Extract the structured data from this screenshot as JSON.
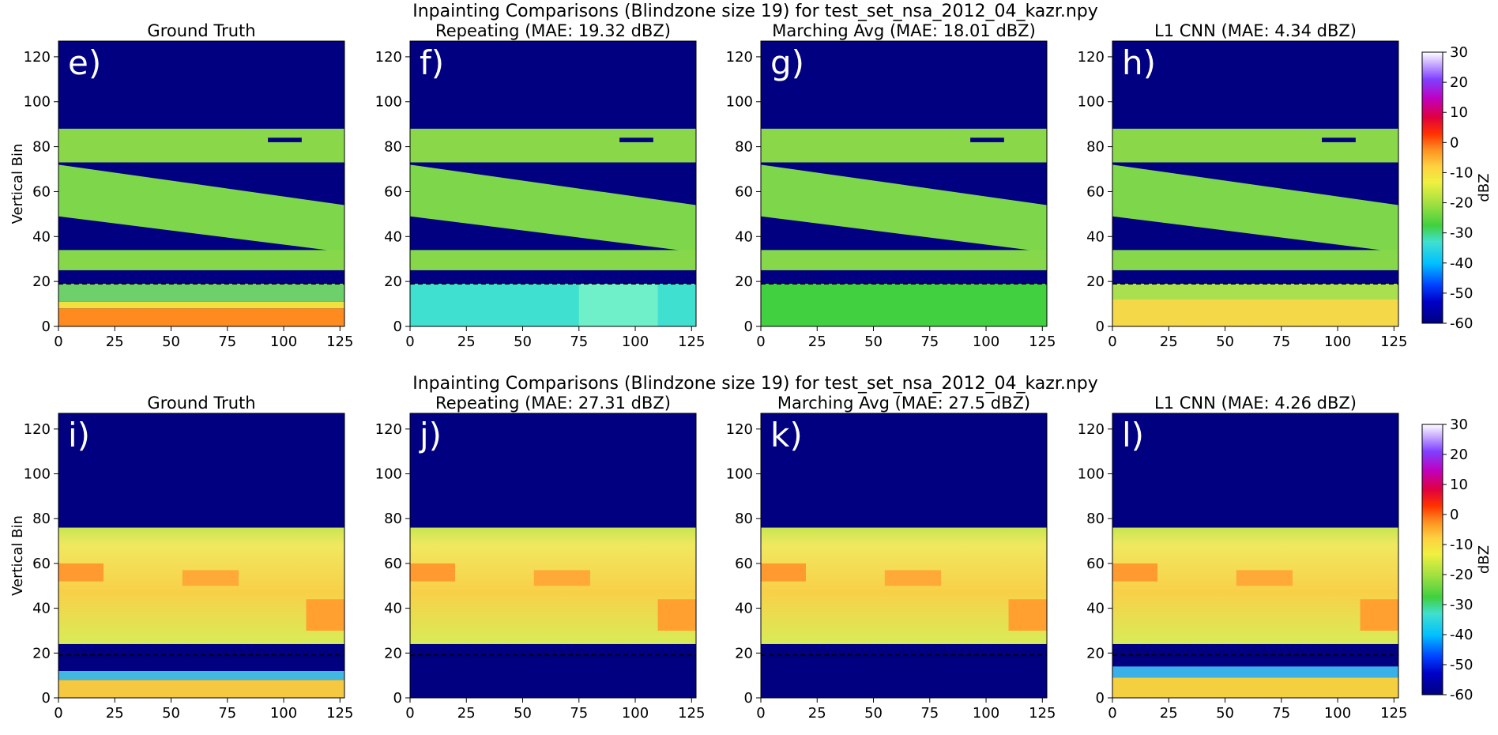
{
  "figure": {
    "rows": [
      {
        "suptitle": "Inpainting Comparisons (Blindzone size 19) for test_set_nsa_2012_04_kazr.npy",
        "ylabel": "Vertical Bin",
        "colorbar_label": "dBZ",
        "panels": [
          {
            "letter": "e)",
            "title": "Ground Truth"
          },
          {
            "letter": "f)",
            "title": "Repeating (MAE: 19.32 dBZ)"
          },
          {
            "letter": "g)",
            "title": "Marching Avg (MAE: 18.01 dBZ)"
          },
          {
            "letter": "h)",
            "title": "L1 CNN (MAE: 4.34 dBZ)"
          }
        ]
      },
      {
        "suptitle": "Inpainting Comparisons (Blindzone size 19) for test_set_nsa_2012_04_kazr.npy",
        "ylabel": "Vertical Bin",
        "colorbar_label": "dBZ",
        "panels": [
          {
            "letter": "i)",
            "title": "Ground Truth"
          },
          {
            "letter": "j)",
            "title": "Repeating (MAE: 27.31 dBZ)"
          },
          {
            "letter": "k)",
            "title": "Marching Avg (MAE: 27.5 dBZ)"
          },
          {
            "letter": "l)",
            "title": "L1 CNN (MAE: 4.26 dBZ)"
          }
        ]
      }
    ]
  },
  "chart_data": [
    {
      "type": "heatmap",
      "title": "Ground Truth",
      "ylabel": "Vertical Bin",
      "xlim": [
        0,
        127
      ],
      "ylim": [
        0,
        127
      ],
      "xticks": [
        0,
        25,
        50,
        75,
        100,
        125
      ],
      "yticks": [
        0,
        20,
        40,
        60,
        80,
        100,
        120
      ],
      "blindzone_line_y": 19,
      "colorbar": {
        "label": "dBZ",
        "range": [
          -60,
          30
        ],
        "ticks": [
          30,
          20,
          10,
          0,
          -10,
          -20,
          -30,
          -40,
          -50,
          -60
        ]
      },
      "layers": [
        {
          "y_range": [
            88,
            127
          ],
          "dbz": -60
        },
        {
          "y_range": [
            73,
            88
          ],
          "dbz": -27
        },
        {
          "y_range_start": [
            48,
            72
          ],
          "y_range_end": [
            33,
            54
          ],
          "dbz": -28
        },
        {
          "y_range": [
            25,
            34
          ],
          "dbz": -28
        },
        {
          "y_range": [
            11,
            19
          ],
          "dbz": -33
        },
        {
          "y_range": [
            0,
            8
          ],
          "dbz": -5
        }
      ]
    },
    {
      "type": "heatmap",
      "title": "Repeating (MAE: 19.32 dBZ)",
      "xlim": [
        0,
        127
      ],
      "ylim": [
        0,
        127
      ],
      "xticks": [
        0,
        25,
        50,
        75,
        100,
        125
      ],
      "yticks": [
        0,
        20,
        40,
        60,
        80,
        100,
        120
      ],
      "blindzone_line_y": 19,
      "blindzone_fill_dbz": -33
    },
    {
      "type": "heatmap",
      "title": "Marching Avg (MAE: 18.01 dBZ)",
      "xlim": [
        0,
        127
      ],
      "ylim": [
        0,
        127
      ],
      "xticks": [
        0,
        25,
        50,
        75,
        100,
        125
      ],
      "yticks": [
        0,
        20,
        40,
        60,
        80,
        100,
        120
      ],
      "blindzone_line_y": 19,
      "blindzone_fill_dbz": -28
    },
    {
      "type": "heatmap",
      "title": "L1 CNN (MAE: 4.34 dBZ)",
      "xlim": [
        0,
        127
      ],
      "ylim": [
        0,
        127
      ],
      "xticks": [
        0,
        25,
        50,
        75,
        100,
        125
      ],
      "yticks": [
        0,
        20,
        40,
        60,
        80,
        100,
        120
      ],
      "blindzone_line_y": 19,
      "blindzone_fill_dbz": -12,
      "colorbar": {
        "label": "dBZ",
        "range": [
          -60,
          30
        ],
        "ticks": [
          30,
          20,
          10,
          0,
          -10,
          -20,
          -30,
          -40,
          -50,
          -60
        ]
      }
    },
    {
      "type": "heatmap",
      "title": "Ground Truth",
      "ylabel": "Vertical Bin",
      "xlim": [
        0,
        127
      ],
      "ylim": [
        0,
        127
      ],
      "xticks": [
        0,
        25,
        50,
        75,
        100,
        125
      ],
      "yticks": [
        0,
        20,
        40,
        60,
        80,
        100,
        120
      ],
      "blindzone_line_y": 19,
      "layers": [
        {
          "y_range": [
            76,
            127
          ],
          "dbz": -60
        },
        {
          "y_range": [
            24,
            76
          ],
          "dbz": -12
        },
        {
          "y_range": [
            12,
            24
          ],
          "dbz": -57
        },
        {
          "y_range": [
            8,
            12
          ],
          "dbz": -40
        },
        {
          "y_range": [
            0,
            8
          ],
          "dbz": -10
        }
      ]
    },
    {
      "type": "heatmap",
      "title": "Repeating (MAE: 27.31 dBZ)",
      "xlim": [
        0,
        127
      ],
      "ylim": [
        0,
        127
      ],
      "xticks": [
        0,
        25,
        50,
        75,
        100,
        125
      ],
      "yticks": [
        0,
        20,
        40,
        60,
        80,
        100,
        120
      ],
      "blindzone_line_y": 19,
      "blindzone_fill_dbz": -60
    },
    {
      "type": "heatmap",
      "title": "Marching Avg (MAE: 27.5 dBZ)",
      "xlim": [
        0,
        127
      ],
      "ylim": [
        0,
        127
      ],
      "xticks": [
        0,
        25,
        50,
        75,
        100,
        125
      ],
      "yticks": [
        0,
        20,
        40,
        60,
        80,
        100,
        120
      ],
      "blindzone_line_y": 19,
      "blindzone_fill_dbz": -60
    },
    {
      "type": "heatmap",
      "title": "L1 CNN (MAE: 4.26 dBZ)",
      "xlim": [
        0,
        127
      ],
      "ylim": [
        0,
        127
      ],
      "xticks": [
        0,
        25,
        50,
        75,
        100,
        125
      ],
      "yticks": [
        0,
        20,
        40,
        60,
        80,
        100,
        120
      ],
      "blindzone_line_y": 19,
      "blindzone_fill_dbz": -15,
      "colorbar": {
        "label": "dBZ",
        "range": [
          -60,
          30
        ],
        "ticks": [
          30,
          20,
          10,
          0,
          -10,
          -20,
          -30,
          -40,
          -50,
          -60
        ]
      }
    }
  ]
}
